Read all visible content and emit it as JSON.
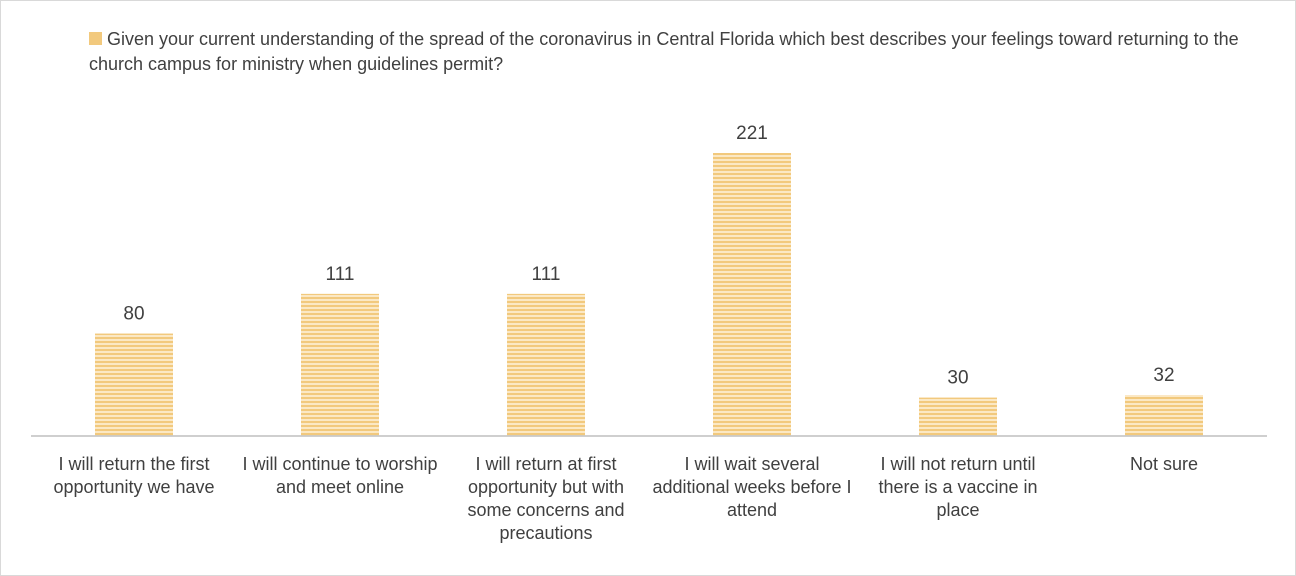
{
  "chart_data": {
    "type": "bar",
    "series": [
      {
        "name": "Given your current understanding of the spread of the coronavirus in Central Florida which best describes your feelings toward returning to the church campus for ministry when guidelines permit?",
        "color": "#f2c97d",
        "values": [
          80,
          111,
          111,
          221,
          30,
          32
        ]
      }
    ],
    "categories": [
      "I will return the first opportunity we have",
      "I will continue to worship and meet online",
      "I will return at first opportunity but with some concerns and precautions",
      "I will wait several additional weeks before I attend",
      "I will not return until there is a vaccine in place",
      "Not sure"
    ],
    "legend": "top"
  }
}
